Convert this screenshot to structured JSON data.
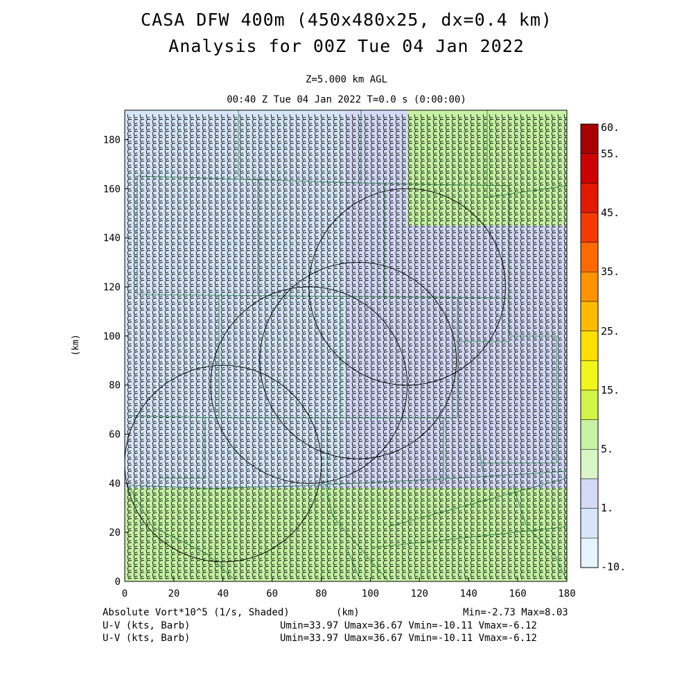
{
  "header": {
    "title_line1": "CASA DFW 400m (450x480x25, dx=0.4 km)",
    "title_line2": "Analysis for 00Z Tue 04 Jan 2022",
    "level": "Z=5.000 km AGL",
    "valid_time": "00:40 Z Tue 04 Jan 2022    T=0.0 s (0:00:00)"
  },
  "footer": {
    "field_label": "Absolute Vort*10^5 (1/s, Shaded)",
    "x_unit": "(km)",
    "minmax": "Min=-2.73 Max=8.03",
    "barb1_label": "U-V (kts, Barb)",
    "barb1_stats": "Umin=33.97 Umax=36.67 Vmin=-10.11 Vmax=-6.12",
    "barb2_label": "U-V (kts, Barb)",
    "barb2_stats": "Umin=33.97 Umax=36.67 Vmin=-10.11 Vmax=-6.12"
  },
  "chart_data": {
    "type": "heatmap",
    "title": "CASA DFW 400m (450x480x25, dx=0.4 km)",
    "ylabel": "(km)",
    "xlabel": "(km)",
    "xlim": [
      0,
      180
    ],
    "ylim": [
      0,
      192
    ],
    "x_ticks": [
      "0",
      "20",
      "40",
      "60",
      "80",
      "100",
      "120",
      "140",
      "160",
      "180"
    ],
    "y_ticks": [
      "0",
      "20",
      "40",
      "60",
      "80",
      "100",
      "120",
      "140",
      "160",
      "180"
    ],
    "field": "Absolute Vorticity x10^5 (1/s)",
    "field_min": -2.73,
    "field_max": 8.03,
    "regions": [
      {
        "name": "low (-10 to 1)",
        "x_range": [
          0,
          180
        ],
        "y_range": [
          38,
          192
        ],
        "color": "#d6e6f8"
      },
      {
        "name": "mid (1 to 5)",
        "x_range": [
          90,
          180
        ],
        "y_range": [
          38,
          192
        ],
        "color": "#d4daf6"
      },
      {
        "name": "high (5 to 10)",
        "x_range": [
          0,
          180
        ],
        "y_range": [
          0,
          38
        ],
        "color": "#c6f3a4"
      },
      {
        "name": "high NE corner (5 to 10)",
        "x_range": [
          115,
          180
        ],
        "y_range": [
          145,
          192
        ],
        "color": "#c6f3a4"
      }
    ],
    "colorbar": {
      "labels": [
        "60.",
        "55.",
        "45.",
        "35.",
        "25.",
        "15.",
        "5.",
        "1.",
        "-10."
      ],
      "colors": [
        "#a80000",
        "#cc0000",
        "#e21a00",
        "#f53a00",
        "#ff6a00",
        "#ff9300",
        "#ffbb00",
        "#ffde00",
        "#f0f51a",
        "#d2f548",
        "#c6f3a4",
        "#d8f5c6",
        "#d4daf6",
        "#d6e6f8",
        "#e6f4fd"
      ]
    },
    "wind_barbs": {
      "u_min": 33.97,
      "u_max": 36.67,
      "v_min": -10.11,
      "v_max": -6.12,
      "units": "kts"
    },
    "radar_range_rings": [
      {
        "center": [
          115,
          120
        ],
        "radius": 40
      },
      {
        "center": [
          95,
          90
        ],
        "radius": 40
      },
      {
        "center": [
          75,
          80
        ],
        "radius": 40
      },
      {
        "center": [
          40,
          48
        ],
        "radius": 40
      }
    ]
  }
}
